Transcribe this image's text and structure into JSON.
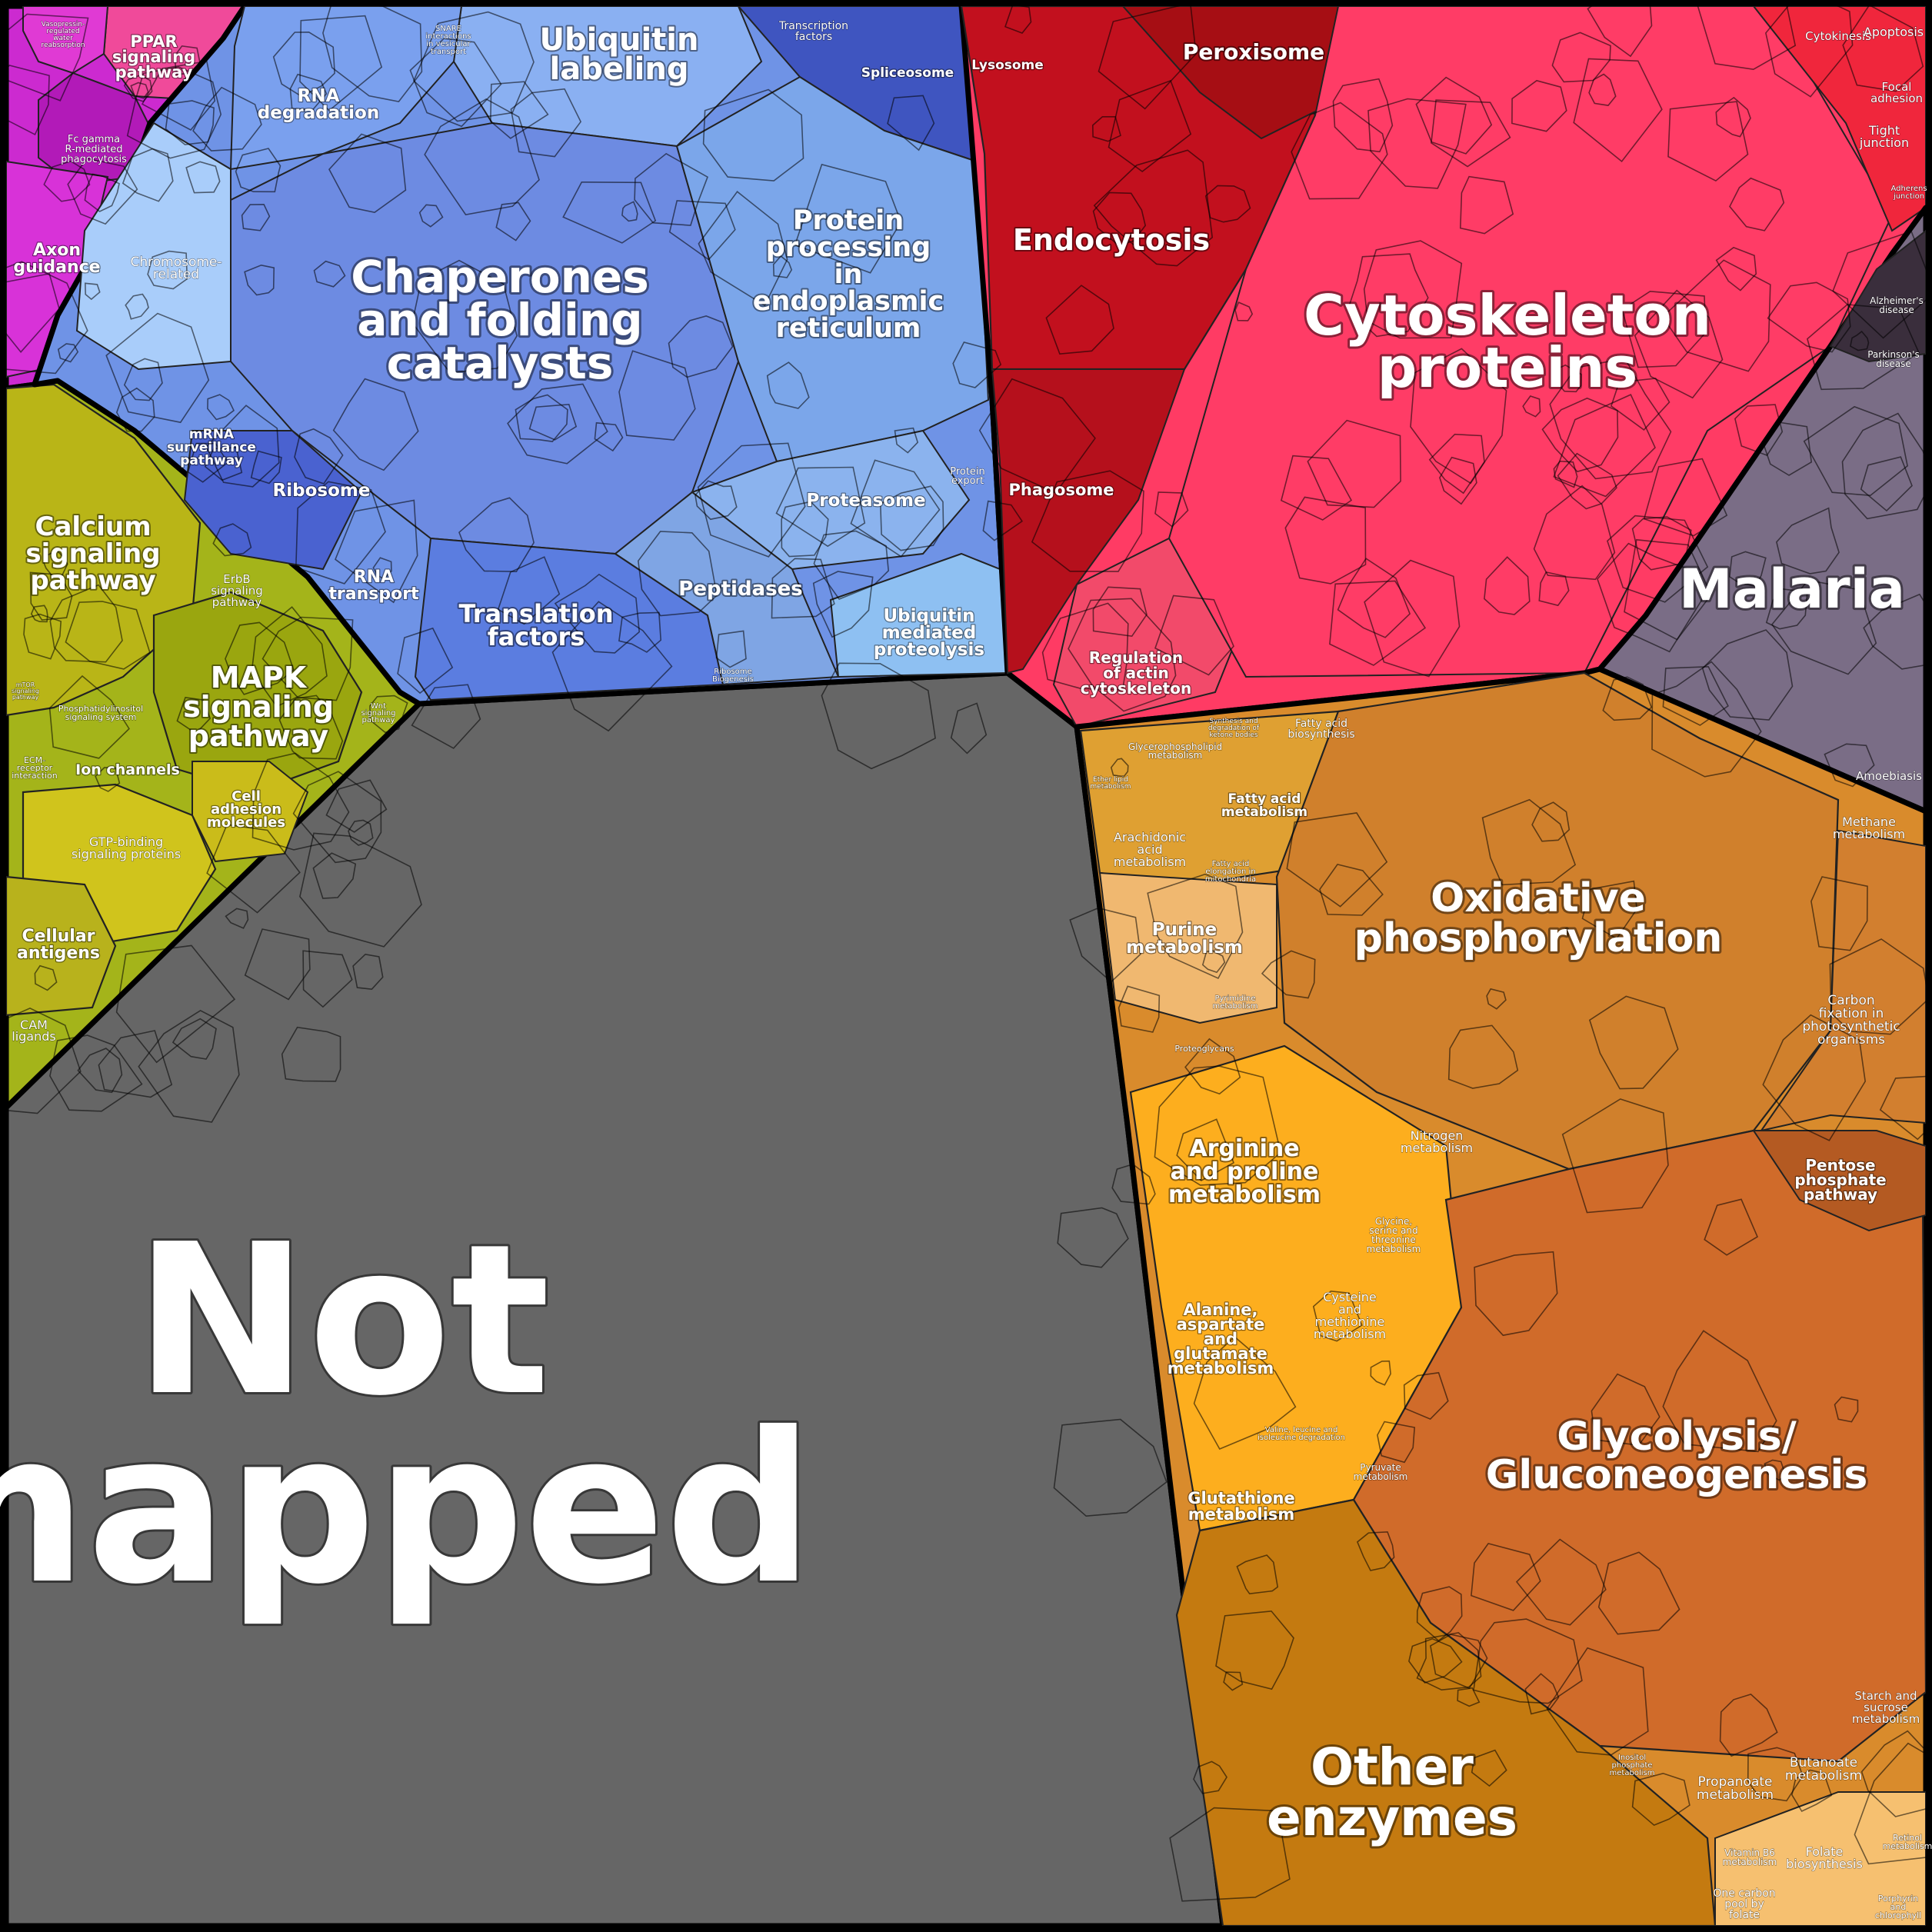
{
  "colors": {
    "not_mapped": "#666666",
    "cellular_processes": "#d8234a",
    "genetic_information": "#6a8ee8",
    "metabolism": "#d98b2c",
    "environmental_signaling": "#a6b41a",
    "organismal_systems": "#d12ad6",
    "human_diseases": "#7a6d86"
  },
  "labels": {
    "not_mapped": [
      "Not",
      "mapped"
    ],
    "chaperones": [
      "Chaperones",
      "and folding",
      "catalysts"
    ],
    "cytoskeleton": [
      "Cytoskeleton",
      "proteins"
    ],
    "oxphos": [
      "Oxidative",
      "phosphorylation"
    ],
    "glycolysis": [
      "Glycolysis/",
      "Gluconeogenesis"
    ],
    "other_enzymes": [
      "Other",
      "enzymes"
    ],
    "malaria": "Malaria",
    "endocytosis": "Endocytosis",
    "peroxisome": "Peroxisome",
    "lysosome": "Lysosome",
    "phagosome": "Phagosome",
    "regulation_actin": [
      "Regulation",
      "of actin",
      "cytoskeleton"
    ],
    "ubiquitin_labeling": [
      "Ubiquitin",
      "labeling"
    ],
    "protein_processing": [
      "Protein",
      "processing",
      "in",
      "endoplasmic",
      "reticulum"
    ],
    "rna_degradation": [
      "RNA",
      "degradation"
    ],
    "spliceosome": "Spliceosome",
    "transcription_factors": [
      "Transcription",
      "factors"
    ],
    "snare": [
      "SNARE",
      "interactions",
      "in vesicular",
      "transport"
    ],
    "chromosome": [
      "Chromosome-",
      "related"
    ],
    "mrna_surveillance": [
      "mRNA",
      "surveillance",
      "pathway"
    ],
    "ribosome": "Ribosome",
    "rna_transport": [
      "RNA",
      "transport"
    ],
    "translation_factors": [
      "Translation",
      "factors"
    ],
    "proteasome": "Proteasome",
    "peptidases": "Peptidases",
    "ubiquitin_proteolysis": [
      "Ubiquitin",
      "mediated",
      "proteolysis"
    ],
    "protein_export": [
      "Protein",
      "export"
    ],
    "ribosome_biogenesis": [
      "Ribosome",
      "Biogenesis"
    ],
    "ppar": [
      "PPAR",
      "signaling",
      "pathway"
    ],
    "vasopressin": [
      "Vasopressin-",
      "regulated",
      "water",
      "reabsorption"
    ],
    "fc_gamma": [
      "Fc gamma",
      "R-mediated",
      "phagocytosis"
    ],
    "axon_guidance": [
      "Axon",
      "guidance"
    ],
    "calcium": [
      "Calcium",
      "signaling",
      "pathway"
    ],
    "erbb": [
      "ErbB",
      "signaling",
      "pathway"
    ],
    "mapk": [
      "MAPK",
      "signaling",
      "pathway"
    ],
    "wnt": [
      "Wnt",
      "signaling",
      "pathway"
    ],
    "mtor": [
      "mTOR",
      "signaling",
      "pathway"
    ],
    "phosphatidylinositol": [
      "Phosphatidylinositol",
      "signaling system"
    ],
    "ecm": [
      "ECM-",
      "receptor",
      "interaction"
    ],
    "ion_channels": "Ion channels",
    "cell_adhesion": [
      "Cell",
      "adhesion",
      "molecules"
    ],
    "gtp_binding": [
      "GTP-binding",
      "signaling proteins"
    ],
    "cellular_antigens": [
      "Cellular",
      "antigens"
    ],
    "cam_ligands": [
      "CAM",
      "ligands"
    ],
    "cytokinesis": "Cytokinesis",
    "apoptosis": "Apoptosis",
    "focal_adhesion": [
      "Focal",
      "adhesion"
    ],
    "tight_junction": [
      "Tight",
      "junction"
    ],
    "adherens_junction": [
      "Adherens",
      "junction"
    ],
    "alzheimers": [
      "Alzheimer's",
      "disease"
    ],
    "parkinsons": [
      "Parkinson's",
      "disease"
    ],
    "amoebiasis": "Amoebiasis",
    "glycerophospholipid": [
      "Glycerophospholipid",
      "metabolism"
    ],
    "fatty_acid_biosynthesis": [
      "Fatty acid",
      "biosynthesis"
    ],
    "fatty_acid_metabolism": [
      "Fatty acid",
      "metabolism"
    ],
    "arachidonic": [
      "Arachidonic",
      "acid",
      "metabolism"
    ],
    "fatty_acid_elongation": [
      "Fatty acid",
      "elongation in",
      "mitochondria"
    ],
    "ether_lipid": [
      "Ether lipid",
      "metabolism"
    ],
    "ketone": [
      "Synthesis and",
      "degradation of",
      "ketone bodies"
    ],
    "purine": [
      "Purine",
      "metabolism"
    ],
    "pyrimidine": [
      "Pyrimidine",
      "metabolism"
    ],
    "proteoglycans": "Proteoglycans",
    "methane": [
      "Methane",
      "metabolism"
    ],
    "carbon_fixation": [
      "Carbon",
      "fixation in",
      "photosynthetic",
      "organisms"
    ],
    "nitrogen": [
      "Nitrogen",
      "metabolism"
    ],
    "pentose": [
      "Pentose",
      "phosphate",
      "pathway"
    ],
    "arginine": [
      "Arginine",
      "and proline",
      "metabolism"
    ],
    "glycine": [
      "Glycine,",
      "serine and",
      "threonine",
      "metabolism"
    ],
    "alanine": [
      "Alanine,",
      "aspartate",
      "and",
      "glutamate",
      "metabolism"
    ],
    "cysteine": [
      "Cysteine",
      "and",
      "methionine",
      "metabolism"
    ],
    "valine": [
      "Valine, leucine and",
      "isoleucine degradation"
    ],
    "glutathione": [
      "Glutathione",
      "metabolism"
    ],
    "pyruvate": [
      "Pyruvate",
      "metabolism"
    ],
    "starch": [
      "Starch and",
      "sucrose",
      "metabolism"
    ],
    "propanoate": [
      "Propanoate",
      "metabolism"
    ],
    "butanoate": [
      "Butanoate",
      "metabolism"
    ],
    "inositol": [
      "Inositol",
      "phosphate",
      "metabolism"
    ],
    "vitamin_b6": [
      "Vitamin B6",
      "metabolism"
    ],
    "folate": [
      "Folate",
      "biosynthesis"
    ],
    "one_carbon": [
      "One carbon",
      "pool by",
      "folate"
    ],
    "retinol": [
      "Retinol",
      "metabolism"
    ],
    "porphyrin": [
      "Porphyrin",
      "and",
      "chlorophyll"
    ]
  }
}
